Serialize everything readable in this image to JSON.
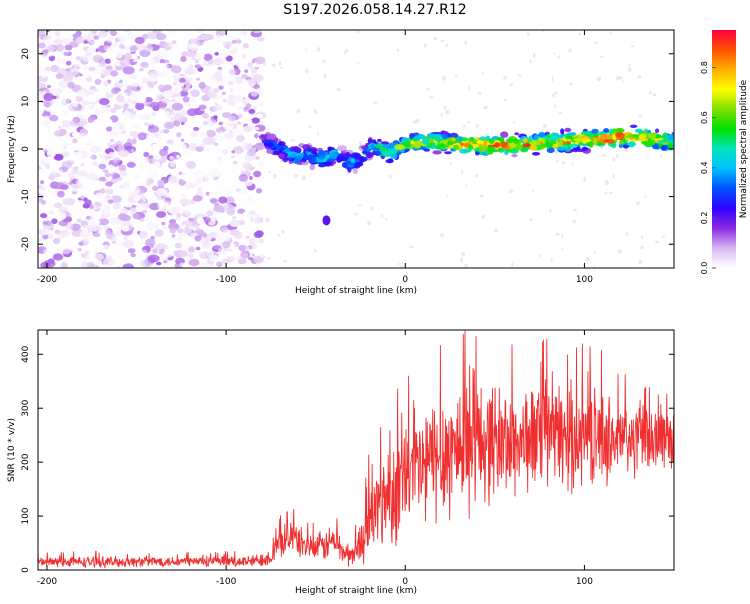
{
  "figure": {
    "title": "S197.2026.058.14.27.R12"
  },
  "chart_data": [
    {
      "type": "heatmap",
      "title": "S197.2026.058.14.27.R12",
      "xlabel": "Height of straight line (km)",
      "ylabel": "Frequency (Hz)",
      "xlim": [
        -205,
        150
      ],
      "ylim": [
        -25,
        25
      ],
      "xticks": [
        -200,
        -100,
        0,
        100
      ],
      "yticks": [
        -20,
        -10,
        0,
        10,
        20
      ],
      "xtick_labels": [
        "-200",
        "-100",
        "0",
        "100"
      ],
      "ytick_labels": [
        "-20",
        "-10",
        "0",
        "10",
        "20"
      ],
      "noise_region_x": [
        -205,
        -80
      ],
      "signal_ridge": {
        "x": [
          -80,
          -75,
          -70,
          -65,
          -60,
          -55,
          -50,
          -45,
          -40,
          -35,
          -30,
          -25,
          -20,
          -15,
          -10,
          -5,
          0,
          10,
          20,
          30,
          40,
          50,
          60,
          70,
          80,
          90,
          100,
          110,
          120,
          130,
          140,
          150
        ],
        "frequency_hz": [
          2,
          1,
          0,
          -1,
          -1.5,
          -1,
          -2,
          -2,
          -1,
          -2,
          -3,
          -2,
          0,
          0.5,
          -1,
          0,
          1,
          1.5,
          1.5,
          1,
          1,
          0.5,
          1,
          1,
          1.5,
          1.5,
          2,
          2,
          2.5,
          2.5,
          2,
          1.5
        ],
        "normalized_amplitude": [
          0.2,
          0.3,
          0.35,
          0.4,
          0.45,
          0.35,
          0.4,
          0.5,
          0.4,
          0.35,
          0.45,
          0.3,
          0.4,
          0.5,
          0.55,
          0.6,
          0.6,
          0.65,
          0.7,
          0.75,
          0.8,
          0.85,
          0.8,
          0.85,
          0.75,
          0.8,
          0.75,
          0.8,
          0.9,
          0.8,
          0.7,
          0.6
        ]
      },
      "isolated_blob": {
        "x": -44,
        "frequency_hz": -15
      }
    },
    {
      "type": "colorbar",
      "label": "Normalized spectral amplitude",
      "range": [
        0,
        0.95
      ],
      "ticks": [
        0.0,
        0.2,
        0.4,
        0.6,
        0.8
      ],
      "tick_labels": [
        "0.0",
        "0.2",
        "0.4",
        "0.6",
        "0.8"
      ],
      "colormap": [
        "#ffffff",
        "#d8b8f0",
        "#8a2be2",
        "#3000ff",
        "#0050ff",
        "#00bfff",
        "#00e5c0",
        "#00e000",
        "#7fe000",
        "#ffff00",
        "#ffb000",
        "#ff5000",
        "#ff0040"
      ]
    },
    {
      "type": "line",
      "title": "",
      "xlabel": "Height of straight line (km)",
      "ylabel": "SNR (10 * v/v)",
      "xlim": [
        -205,
        150
      ],
      "ylim": [
        0,
        445
      ],
      "xticks": [
        -200,
        -100,
        0,
        100
      ],
      "yticks": [
        0,
        100,
        200,
        300,
        400
      ],
      "xtick_labels": [
        "-200",
        "-100",
        "0",
        "100"
      ],
      "ytick_labels": [
        "0",
        "100",
        "200",
        "300",
        "400"
      ],
      "color": "#f03030",
      "series": [
        {
          "name": "SNR",
          "envelope_x": [
            -205,
            -180,
            -160,
            -140,
            -120,
            -100,
            -85,
            -75,
            -70,
            -65,
            -60,
            -55,
            -50,
            -45,
            -40,
            -35,
            -30,
            -25,
            -20,
            -15,
            -10,
            -5,
            0,
            10,
            20,
            30,
            40,
            50,
            60,
            70,
            80,
            90,
            100,
            110,
            120,
            130,
            140,
            150
          ],
          "mean": [
            15,
            15,
            15,
            16,
            16,
            15,
            16,
            25,
            50,
            65,
            55,
            45,
            40,
            45,
            55,
            35,
            25,
            50,
            90,
            120,
            140,
            150,
            170,
            190,
            215,
            230,
            240,
            240,
            235,
            245,
            250,
            245,
            250,
            245,
            240,
            240,
            245,
            245
          ],
          "spread": [
            12,
            12,
            12,
            12,
            12,
            12,
            14,
            20,
            35,
            40,
            35,
            30,
            30,
            35,
            40,
            30,
            25,
            45,
            80,
            100,
            110,
            120,
            125,
            135,
            145,
            150,
            140,
            130,
            120,
            120,
            110,
            120,
            110,
            100,
            90,
            80,
            70,
            60
          ]
        }
      ]
    }
  ]
}
